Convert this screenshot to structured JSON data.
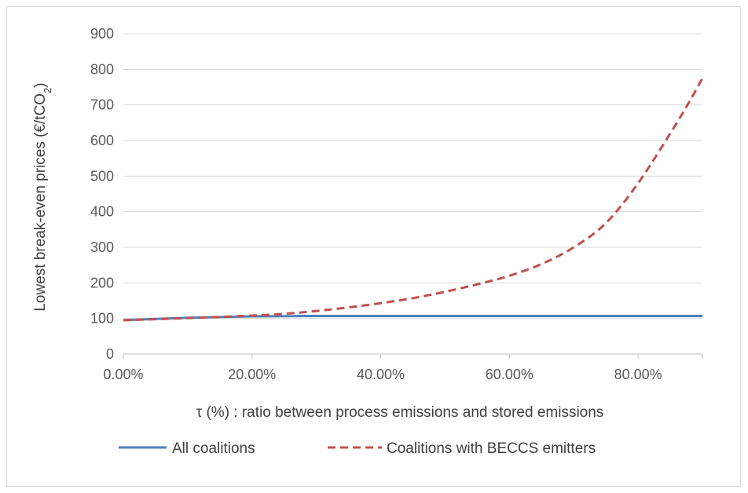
{
  "chart_data": {
    "type": "line",
    "xlabel": "τ (%) : ratio between process emissions and stored emissions",
    "ylabel": "Lowest break-even prices (€/tCO",
    "ylabel_sub": "2",
    "ylabel_end": ")",
    "xlim": [
      0,
      0.9
    ],
    "ylim": [
      0,
      900
    ],
    "x_ticks": [
      0,
      0.2,
      0.4,
      0.6,
      0.8
    ],
    "x_tick_labels": [
      "0.00%",
      "20.00%",
      "40.00%",
      "60.00%",
      "80.00%"
    ],
    "y_ticks": [
      0,
      100,
      200,
      300,
      400,
      500,
      600,
      700,
      800,
      900
    ],
    "y_tick_labels": [
      "0",
      "100",
      "200",
      "300",
      "400",
      "500",
      "600",
      "700",
      "800",
      "900"
    ],
    "grid": "horizontal",
    "legend_position": "bottom",
    "series": [
      {
        "name": "All coalitions",
        "color": "#4f81bd",
        "style": "solid",
        "x": [
          0,
          0.1,
          0.2,
          0.3,
          0.4,
          0.5,
          0.6,
          0.7,
          0.8,
          0.9
        ],
        "y": [
          95,
          102,
          106,
          107,
          107,
          107,
          107,
          107,
          107,
          107
        ]
      },
      {
        "name": "Coalitions with BECCS emitters",
        "color": "#c0504d",
        "style": "dashed",
        "x": [
          0,
          0.1,
          0.2,
          0.25,
          0.3,
          0.35,
          0.4,
          0.45,
          0.5,
          0.55,
          0.6,
          0.65,
          0.7,
          0.75,
          0.8,
          0.85,
          0.88,
          0.9
        ],
        "y": [
          95,
          101,
          108,
          113,
          121,
          131,
          143,
          157,
          175,
          196,
          220,
          253,
          300,
          368,
          480,
          620,
          710,
          775
        ]
      }
    ]
  }
}
